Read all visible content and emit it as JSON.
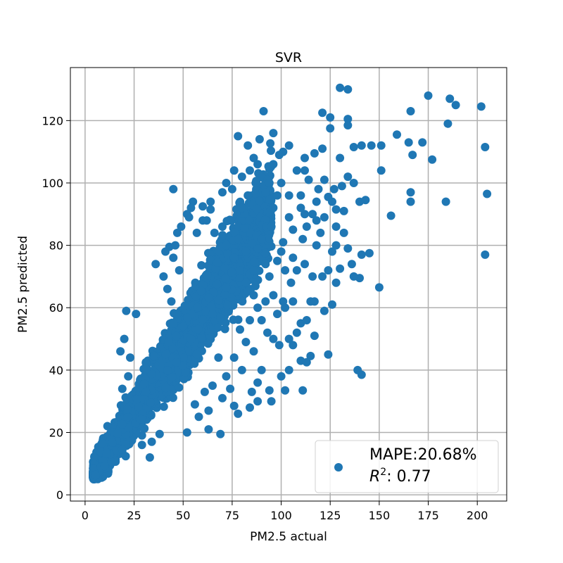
{
  "chart_data": {
    "type": "scatter",
    "title": "SVR",
    "xlabel": "PM2.5 actual",
    "ylabel": "PM2.5 predicted",
    "xlim": [
      -7.5,
      215
    ],
    "ylim": [
      -2,
      137
    ],
    "xticks": [
      0,
      25,
      50,
      75,
      100,
      125,
      150,
      175,
      200
    ],
    "yticks": [
      0,
      20,
      40,
      60,
      80,
      100,
      120
    ],
    "grid": true,
    "color": "#1f77b4",
    "legend": {
      "placement": "lower-right",
      "line1": "MAPE:20.68%",
      "line2_prefix": "R",
      "line2_sup": "2",
      "line2_suffix": ": 0.77"
    },
    "outliers": [
      [
        130,
        130.5
      ],
      [
        134,
        130
      ],
      [
        91,
        123
      ],
      [
        121,
        122.5
      ],
      [
        125,
        121
      ],
      [
        134,
        120.5
      ],
      [
        175,
        128
      ],
      [
        186,
        127
      ],
      [
        189,
        125
      ],
      [
        202,
        124.5
      ],
      [
        166,
        123
      ],
      [
        185,
        119
      ],
      [
        204,
        111.5
      ],
      [
        205,
        96.5
      ],
      [
        204,
        77
      ],
      [
        184,
        94
      ],
      [
        166,
        97
      ],
      [
        166,
        94
      ],
      [
        156,
        89.5
      ],
      [
        159,
        115.5
      ],
      [
        151,
        112
      ],
      [
        151,
        104
      ],
      [
        165,
        113
      ],
      [
        167,
        109
      ],
      [
        172,
        113
      ],
      [
        177,
        107.5
      ],
      [
        146,
        112
      ],
      [
        137,
        111.5
      ],
      [
        141,
        112
      ],
      [
        134,
        118.5
      ],
      [
        125,
        117.5
      ],
      [
        130,
        108
      ],
      [
        117,
        109.5
      ],
      [
        121,
        111
      ],
      [
        112,
        108
      ],
      [
        112,
        104
      ],
      [
        104,
        112
      ],
      [
        101,
        110
      ],
      [
        99,
        109
      ],
      [
        96,
        116
      ],
      [
        78,
        115
      ],
      [
        83,
        112
      ],
      [
        89,
        114
      ],
      [
        86,
        108
      ],
      [
        94,
        104.5
      ],
      [
        45,
        98
      ],
      [
        55,
        94
      ],
      [
        60,
        92.5
      ],
      [
        64,
        91.5
      ],
      [
        54,
        92
      ],
      [
        53,
        89
      ],
      [
        47,
        84
      ],
      [
        43,
        79.5
      ],
      [
        45,
        76
      ],
      [
        36,
        74
      ],
      [
        41,
        78
      ],
      [
        21,
        59
      ],
      [
        26,
        58
      ],
      [
        18,
        46
      ],
      [
        20,
        50
      ],
      [
        23,
        44
      ],
      [
        22,
        38
      ],
      [
        19,
        34
      ],
      [
        33,
        12
      ],
      [
        29,
        16
      ],
      [
        34,
        17
      ],
      [
        19,
        14.5
      ],
      [
        38,
        19.5
      ],
      [
        52,
        20
      ],
      [
        63,
        21
      ],
      [
        69,
        19.5
      ],
      [
        76,
        28.5
      ],
      [
        78,
        26
      ],
      [
        84,
        28
      ],
      [
        88,
        30
      ],
      [
        94,
        33.5
      ],
      [
        95,
        30
      ],
      [
        102,
        33.5
      ],
      [
        111,
        33.5
      ],
      [
        100,
        38
      ],
      [
        104,
        40
      ],
      [
        110,
        43
      ],
      [
        106,
        48
      ],
      [
        110,
        55
      ],
      [
        115,
        44.5
      ],
      [
        113,
        42.5
      ],
      [
        124,
        45
      ],
      [
        117,
        51
      ],
      [
        122,
        59
      ],
      [
        126,
        61
      ],
      [
        136,
        74
      ],
      [
        139,
        40
      ],
      [
        141,
        38.5
      ],
      [
        150,
        66.5
      ],
      [
        140,
        69.5
      ],
      [
        137,
        70
      ],
      [
        141,
        77
      ],
      [
        145,
        77.5
      ],
      [
        126,
        78
      ],
      [
        134,
        79
      ],
      [
        130,
        72.5
      ],
      [
        128,
        68
      ],
      [
        121,
        70
      ],
      [
        115,
        62
      ],
      [
        116,
        70
      ],
      [
        108,
        72
      ],
      [
        112,
        74
      ],
      [
        102,
        60
      ],
      [
        106,
        62
      ],
      [
        98,
        58
      ],
      [
        101,
        62
      ],
      [
        105,
        68
      ],
      [
        102,
        72
      ],
      [
        98,
        75
      ],
      [
        101,
        81
      ],
      [
        106,
        85
      ],
      [
        104,
        89
      ],
      [
        110,
        96
      ],
      [
        114,
        101
      ],
      [
        118,
        94
      ],
      [
        124,
        95.5
      ],
      [
        127,
        98
      ],
      [
        131,
        99
      ],
      [
        134,
        102
      ],
      [
        137,
        100
      ],
      [
        140,
        94
      ],
      [
        143,
        94.5
      ],
      [
        132,
        91
      ],
      [
        128,
        91.5
      ],
      [
        126,
        94
      ],
      [
        119,
        98
      ],
      [
        122,
        101
      ],
      [
        118,
        88
      ],
      [
        113,
        86
      ],
      [
        111,
        82
      ],
      [
        118,
        80
      ],
      [
        120,
        84
      ],
      [
        122,
        89
      ],
      [
        128,
        86
      ],
      [
        82,
        49
      ],
      [
        86,
        46
      ],
      [
        90,
        40
      ],
      [
        88,
        36
      ],
      [
        85,
        33
      ],
      [
        80,
        40
      ],
      [
        76,
        44
      ],
      [
        79,
        53
      ],
      [
        84,
        56
      ],
      [
        90,
        56
      ],
      [
        93,
        52
      ],
      [
        96,
        50
      ],
      [
        99,
        48
      ],
      [
        104,
        50
      ],
      [
        92,
        62
      ],
      [
        96,
        64
      ],
      [
        94,
        70
      ],
      [
        88,
        79
      ],
      [
        90,
        82
      ],
      [
        95,
        86
      ],
      [
        96,
        92
      ],
      [
        92,
        97
      ],
      [
        87,
        100
      ],
      [
        80,
        102
      ],
      [
        75,
        98
      ],
      [
        70,
        97
      ],
      [
        80,
        92
      ],
      [
        83,
        96
      ],
      [
        65,
        58
      ],
      [
        68,
        44
      ],
      [
        72,
        38
      ],
      [
        74,
        34
      ],
      [
        70,
        31
      ],
      [
        63,
        27
      ],
      [
        58,
        25
      ],
      [
        56,
        29
      ],
      [
        61,
        33
      ],
      [
        65,
        35
      ],
      [
        57,
        45
      ],
      [
        54,
        50
      ],
      [
        50,
        54
      ],
      [
        47,
        58
      ],
      [
        44,
        62
      ],
      [
        42,
        66
      ],
      [
        40,
        70
      ],
      [
        48,
        72
      ],
      [
        57,
        84
      ],
      [
        62,
        88
      ],
      [
        66,
        84
      ],
      [
        70,
        86
      ],
      [
        74,
        88
      ],
      [
        72,
        80
      ],
      [
        76,
        76
      ],
      [
        79,
        72
      ],
      [
        82,
        68
      ],
      [
        86,
        64
      ],
      [
        88,
        60
      ],
      [
        108,
        52
      ],
      [
        113,
        56
      ],
      [
        117,
        62
      ],
      [
        124,
        72
      ],
      [
        128,
        80
      ],
      [
        132,
        84
      ],
      [
        116,
        90
      ],
      [
        110,
        92
      ],
      [
        98,
        96
      ],
      [
        94,
        100
      ],
      [
        100,
        100
      ],
      [
        104,
        96
      ],
      [
        108,
        104
      ],
      [
        96,
        106
      ],
      [
        88,
        106
      ],
      [
        84,
        104
      ],
      [
        76,
        104
      ],
      [
        72,
        100
      ],
      [
        64,
        94
      ],
      [
        60,
        88
      ],
      [
        112,
        90
      ],
      [
        106,
        76
      ],
      [
        100,
        78
      ],
      [
        92,
        74
      ],
      [
        86,
        72
      ],
      [
        82,
        78
      ],
      [
        78,
        82
      ],
      [
        52,
        90
      ],
      [
        49,
        86
      ],
      [
        46,
        80
      ]
    ]
  }
}
